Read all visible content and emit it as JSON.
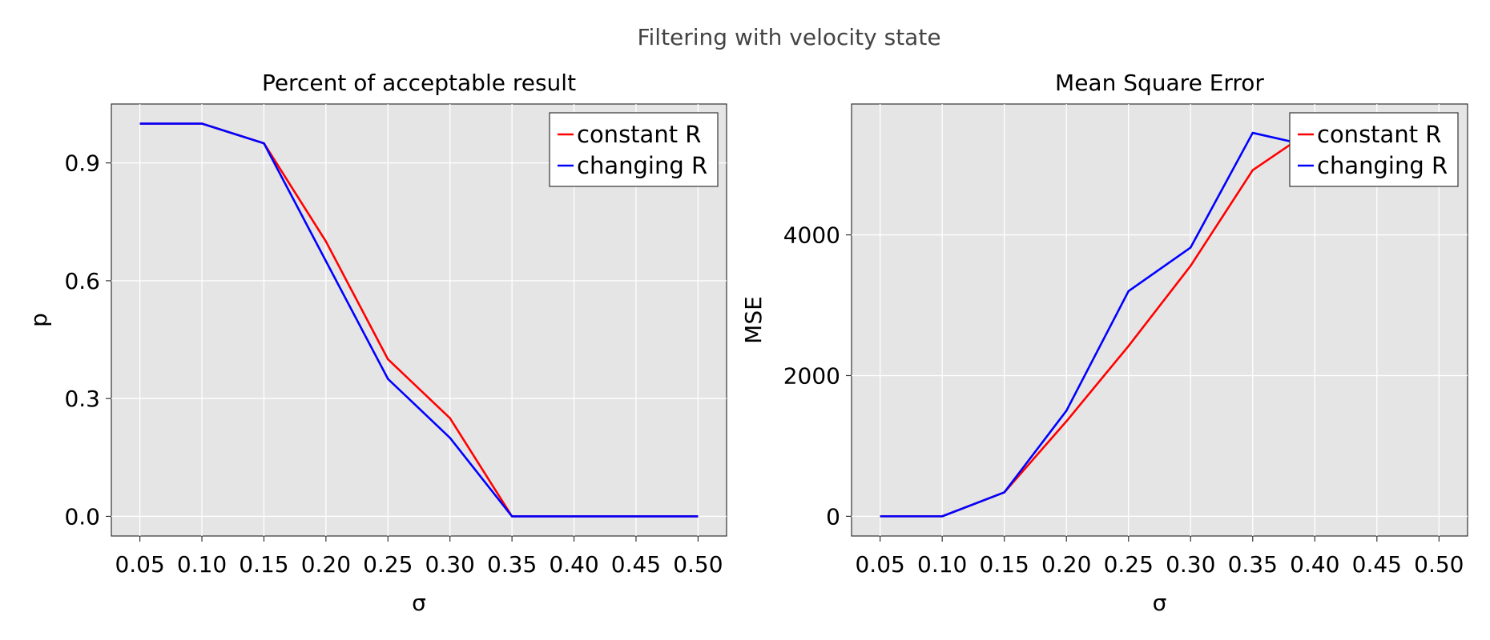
{
  "figure": {
    "title": "Filtering with velocity state"
  },
  "chart_data": [
    {
      "type": "line",
      "title": "Percent of acceptable result",
      "xlabel": "σ",
      "ylabel": "p",
      "x": [
        0.05,
        0.1,
        0.15,
        0.2,
        0.25,
        0.3,
        0.35,
        0.4,
        0.45,
        0.5
      ],
      "xticks": [
        "0.05",
        "0.10",
        "0.15",
        "0.20",
        "0.25",
        "0.30",
        "0.35",
        "0.40",
        "0.45",
        "0.50"
      ],
      "xlim": [
        0.027,
        0.523
      ],
      "yticks": [
        0.0,
        0.3,
        0.6,
        0.9
      ],
      "ytick_labels": [
        "0.0",
        "0.3",
        "0.6",
        "0.9"
      ],
      "ylim": [
        -0.05,
        1.05
      ],
      "grid": true,
      "legend_position": "top-right",
      "series": [
        {
          "name": "constant R",
          "color": "#ff0000",
          "values": [
            1.0,
            1.0,
            0.95,
            0.7,
            0.4,
            0.25,
            0.0,
            0.0,
            0.0,
            0.0
          ]
        },
        {
          "name": "changing R",
          "color": "#0000ff",
          "values": [
            1.0,
            1.0,
            0.95,
            0.65,
            0.35,
            0.2,
            0.0,
            0.0,
            0.0,
            0.0
          ]
        }
      ]
    },
    {
      "type": "line",
      "title": "Mean Square Error",
      "xlabel": "σ",
      "ylabel": "MSE",
      "x": [
        0.05,
        0.1,
        0.15,
        0.2,
        0.25,
        0.3,
        0.35,
        0.4
      ],
      "xticks": [
        "0.05",
        "0.10",
        "0.15",
        "0.20",
        "0.25",
        "0.30",
        "0.35",
        "0.40",
        "0.45",
        "0.50"
      ],
      "xtick_values": [
        0.05,
        0.1,
        0.15,
        0.2,
        0.25,
        0.3,
        0.35,
        0.4,
        0.45,
        0.5
      ],
      "xlim": [
        0.027,
        0.523
      ],
      "yticks": [
        0,
        2000,
        4000
      ],
      "ytick_labels": [
        "0",
        "2000",
        "4000"
      ],
      "ylim": [
        -280,
        5860
      ],
      "grid": true,
      "legend_position": "top-right",
      "series": [
        {
          "name": "constant R",
          "color": "#ff0000",
          "values": [
            0,
            0,
            340,
            1350,
            2420,
            3560,
            4920,
            5520
          ]
        },
        {
          "name": "changing R",
          "color": "#0000ff",
          "values": [
            0,
            0,
            340,
            1500,
            3200,
            3820,
            5450,
            5250
          ]
        }
      ]
    }
  ]
}
